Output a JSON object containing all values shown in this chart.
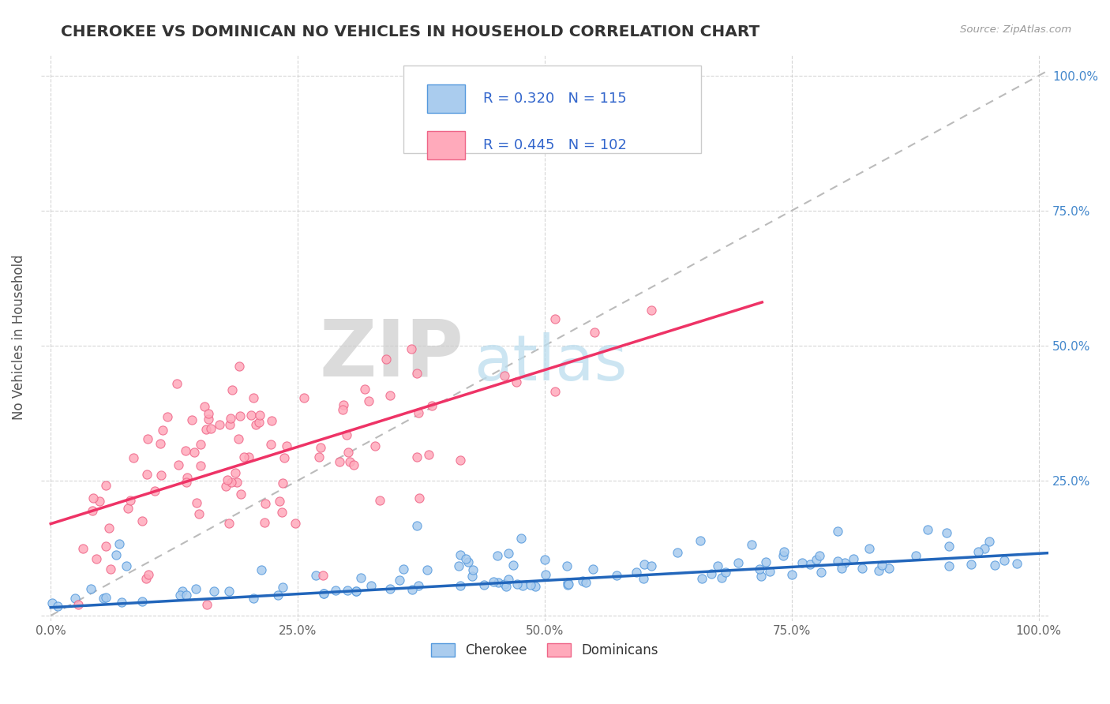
{
  "title": "CHEROKEE VS DOMINICAN NO VEHICLES IN HOUSEHOLD CORRELATION CHART",
  "source_text": "Source: ZipAtlas.com",
  "ylabel": "No Vehicles in Household",
  "cherokee_R": 0.32,
  "cherokee_N": 115,
  "dominican_R": 0.445,
  "dominican_N": 102,
  "cherokee_color": "#aaccee",
  "cherokee_edge_color": "#5599dd",
  "cherokee_line_color": "#2266bb",
  "dominican_color": "#ffaabb",
  "dominican_edge_color": "#ee6688",
  "dominican_line_color": "#ee3366",
  "diagonal_line_color": "#bbbbbb",
  "grid_color": "#cccccc",
  "background_color": "#ffffff",
  "title_color": "#333333",
  "watermark_zip_color": "#cccccc",
  "watermark_atlas_color": "#bbddee",
  "legend_color": "#3366cc",
  "right_axis_color": "#4488cc",
  "source_color": "#999999"
}
